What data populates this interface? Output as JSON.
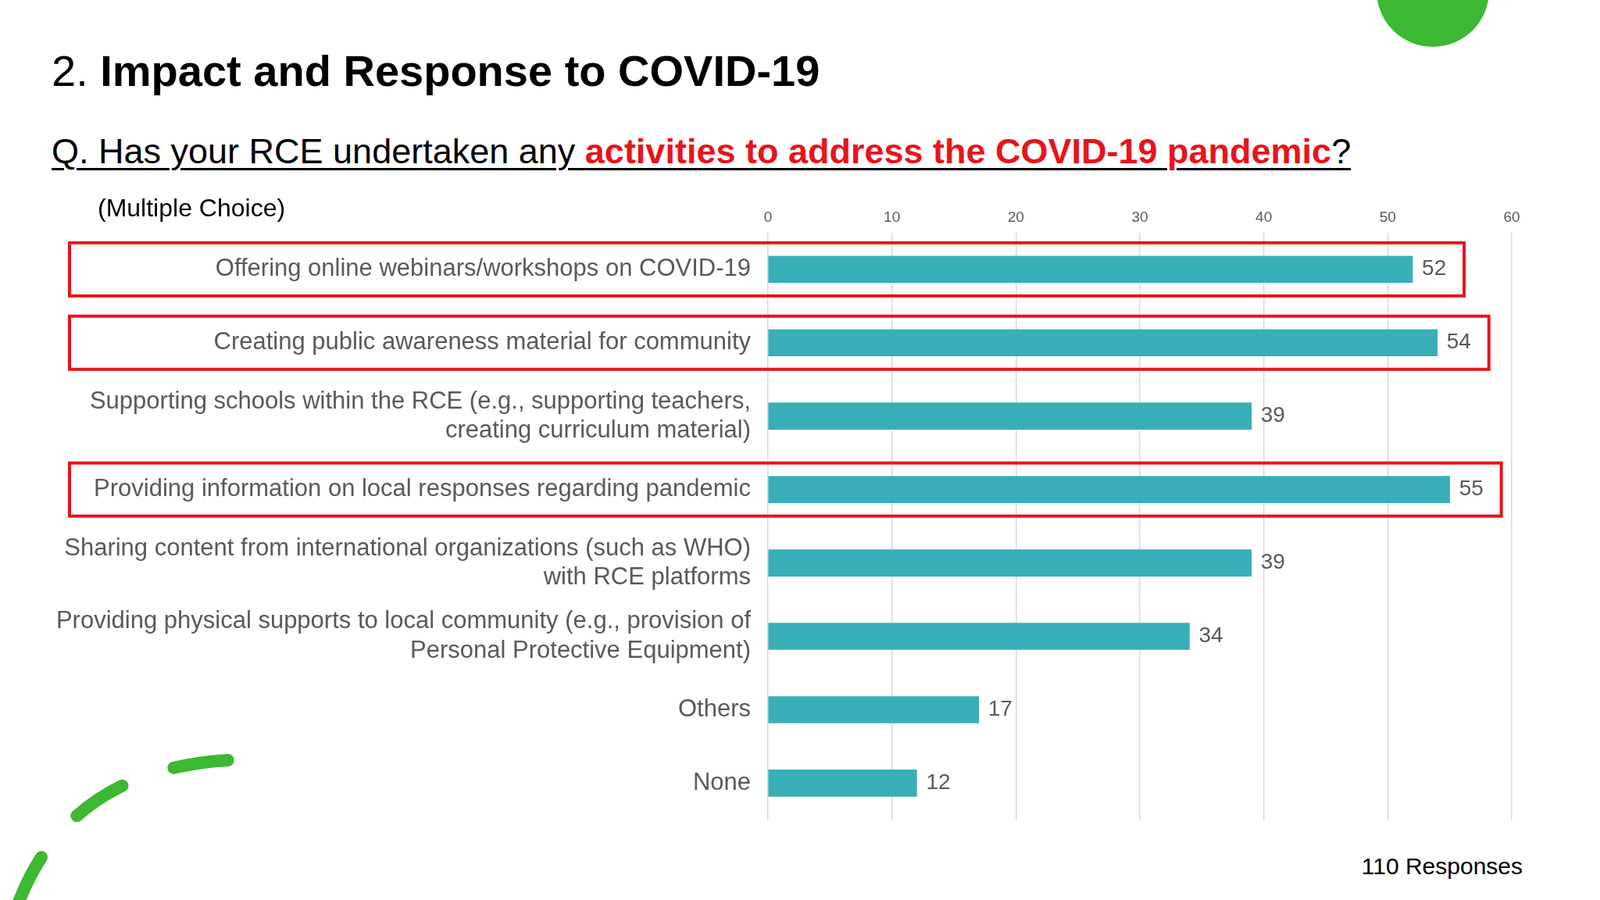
{
  "title": "2. Impact and Response to COVID-19",
  "question": [
    "Q. Has your RCE undertaken any ",
    "activities to address the COVID-19 pandemic",
    "?"
  ],
  "subtitle": "(Multiple Choice)",
  "annotations": [
    "110 Responses"
  ],
  "chart_data": {
    "type": "bar",
    "orientation": "horizontal",
    "categories": [
      "Offering online webinars/workshops on COVID-19",
      "Creating public awareness material for community",
      "Supporting schools within the RCE (e.g., supporting teachers, creating curriculum material)",
      "Providing information on local responses regarding pandemic",
      "Sharing content from international organizations (such as WHO) with RCE platforms",
      "Providing physical supports to local community (e.g., provision of Personal Protective Equipment)",
      "Others",
      "None"
    ],
    "values": [
      52,
      54,
      39,
      55,
      39,
      34,
      17,
      12
    ],
    "color": "#38afb8",
    "xlim": [
      0,
      60
    ],
    "xticks": [
      0,
      10,
      20,
      30,
      40,
      50,
      60
    ],
    "grid": true,
    "data_labels": true
  }
}
